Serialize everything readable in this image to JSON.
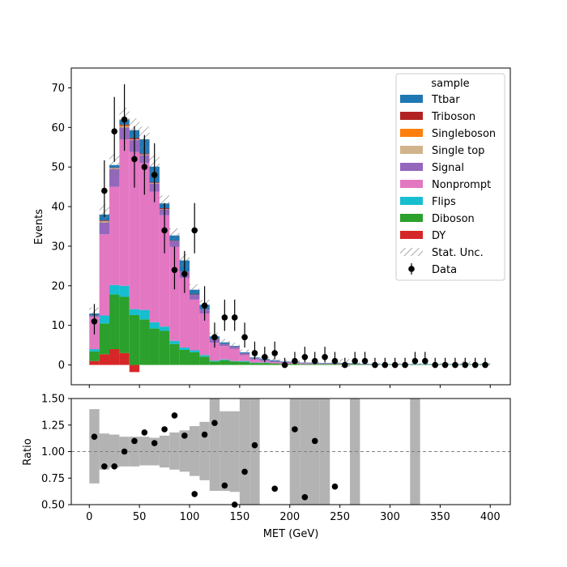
{
  "chart_data": {
    "type": "bar",
    "xlabel": "MET (GeV)",
    "ylabel": "Events",
    "ratio_ylabel": "Ratio",
    "xlim": [
      -18,
      420
    ],
    "ylim": [
      -5,
      75
    ],
    "ratio_ylim": [
      0.5,
      1.5
    ],
    "bin_width": 10,
    "bin_edges_start": 0,
    "x_ticks": [
      0,
      50,
      100,
      150,
      200,
      250,
      300,
      350,
      400
    ],
    "y_ticks": [
      0,
      10,
      20,
      30,
      40,
      50,
      60,
      70
    ],
    "ratio_ticks": [
      0.5,
      0.75,
      1.0,
      1.25,
      1.5
    ],
    "ratio_tick_labels": [
      "0.50",
      "0.75",
      "1.00",
      "1.25",
      "1.50"
    ],
    "legend_title": "sample",
    "legend_position": "top-right",
    "series": [
      {
        "name": "DY",
        "color": "#d62728",
        "values": [
          1.0,
          2.7,
          4.0,
          3.0,
          -1.8,
          0,
          0,
          0,
          0,
          0,
          0,
          0,
          0,
          0,
          0,
          0,
          0,
          0,
          0,
          0,
          0,
          0,
          0,
          0,
          0,
          0,
          0,
          0,
          0,
          0,
          0,
          0,
          0,
          0,
          0,
          0,
          0,
          0,
          0,
          0
        ]
      },
      {
        "name": "Diboson",
        "color": "#2ca02c",
        "values": [
          2.4,
          7.8,
          13.8,
          14.2,
          12.6,
          11.5,
          9.2,
          8.6,
          5.3,
          3.8,
          3.2,
          2.1,
          0.9,
          1.2,
          0.9,
          0.8,
          0.5,
          0.5,
          0.4,
          0.3,
          0.3,
          0.2,
          0.2,
          0.2,
          0.2,
          0.2,
          0.2,
          0.1,
          0.1,
          0.1,
          0.1,
          0.1,
          0.1,
          0.1,
          0.1,
          0.1,
          0.1,
          0.1,
          0.1,
          0.1
        ]
      },
      {
        "name": "Flips",
        "color": "#17becf",
        "values": [
          0.6,
          2.0,
          2.4,
          2.8,
          1.5,
          2.4,
          1.6,
          1.1,
          0.8,
          0.6,
          0.5,
          0.4,
          0.2,
          0.2,
          0.1,
          0.2,
          0.1,
          0.1,
          0,
          0,
          0,
          0,
          0,
          0,
          0,
          0,
          0,
          0,
          0,
          0,
          0,
          0,
          0,
          0,
          0,
          0,
          0,
          0,
          0,
          0
        ]
      },
      {
        "name": "Nonprompt",
        "color": "#e377c2",
        "values": [
          8.2,
          20.5,
          24.8,
          37.0,
          39.7,
          37.1,
          33.0,
          28.1,
          23.7,
          17.6,
          12.8,
          10.5,
          4.5,
          3.4,
          3.1,
          1.5,
          0.8,
          0.4,
          0.3,
          0.3,
          0.2,
          0.2,
          0.1,
          0.1,
          0.1,
          0.1,
          0,
          0,
          0,
          0,
          0,
          0,
          0,
          0,
          0,
          0,
          0,
          0,
          0,
          0
        ]
      },
      {
        "name": "Signal",
        "color": "#9467bd",
        "values": [
          0.3,
          3.0,
          4.5,
          3.0,
          3.0,
          2.0,
          2.0,
          1.5,
          1.5,
          1.5,
          1.2,
          1.0,
          1.0,
          0.5,
          0.5,
          0.5,
          0.3,
          0.3,
          0.3,
          0.2,
          0.2,
          0.1,
          0.1,
          0.1,
          0.1,
          0.1,
          0.1,
          0.1,
          0,
          0,
          0,
          0,
          0,
          0,
          0,
          0,
          0,
          0,
          0,
          0
        ]
      },
      {
        "name": "Single top",
        "color": "#d2b48c",
        "values": [
          0,
          0.3,
          0.2,
          0.2,
          0.2,
          0.2,
          0.1,
          0.1,
          0,
          0,
          0,
          0,
          0,
          0,
          0,
          0,
          0,
          0,
          0,
          0,
          0,
          0,
          0,
          0,
          0,
          0,
          0,
          0,
          0,
          0,
          0,
          0,
          0,
          0,
          0,
          0,
          0,
          0,
          0,
          0
        ]
      },
      {
        "name": "Singleboson",
        "color": "#ff7f0e",
        "values": [
          0,
          0,
          0,
          0.3,
          0,
          0,
          0,
          0,
          0,
          0,
          0,
          0,
          0,
          0,
          0,
          0,
          0,
          0,
          0,
          0,
          0,
          0,
          0,
          0,
          0,
          0,
          0,
          0,
          0,
          0,
          0,
          0,
          0,
          0,
          0,
          0,
          0,
          0,
          0,
          0
        ]
      },
      {
        "name": "Triboson",
        "color": "#b22222",
        "values": [
          0,
          0.2,
          0.1,
          0.2,
          0.3,
          0.2,
          0.2,
          0.2,
          0.1,
          0.1,
          0.1,
          0,
          0,
          0,
          0,
          0,
          0,
          0,
          0,
          0,
          0,
          0,
          0,
          0,
          0,
          0,
          0,
          0,
          0,
          0,
          0,
          0,
          0,
          0,
          0,
          0,
          0,
          0,
          0,
          0
        ]
      },
      {
        "name": "Ttbar",
        "color": "#1f77b4",
        "values": [
          0.5,
          1.5,
          0.7,
          1.3,
          2.0,
          3.6,
          4.0,
          1.2,
          1.3,
          2.8,
          1.2,
          1.2,
          0.6,
          0.4,
          0.2,
          0.2,
          0.2,
          0.2,
          0.2,
          0.1,
          0.1,
          0.1,
          0.1,
          0.1,
          0.1,
          0.1,
          0.1,
          0.1,
          0.1,
          0.1,
          0.1,
          0.1,
          0.1,
          0.1,
          0.1,
          0.1,
          0.1,
          0.1,
          0.1,
          0.1
        ]
      }
    ],
    "stat_unc": [
      1.5,
      2.5,
      2.8,
      3.0,
      3.0,
      3.2,
      2.8,
      2.0,
      1.8,
      1.6,
      1.4,
      1.3,
      1.0,
      0.9,
      0.8,
      0.7,
      0.5,
      0.5,
      0.4,
      0.4,
      0.4,
      0.3,
      0.3,
      0.3,
      0.3,
      1.0,
      0.3,
      0.3,
      0.3,
      0.3,
      0.3,
      0.3,
      0.3,
      0.3,
      0.3,
      0.3,
      0.3,
      0.8,
      0.3,
      0.3
    ],
    "data": {
      "name": "Data",
      "x": [
        5,
        15,
        25,
        35,
        45,
        55,
        65,
        75,
        85,
        95,
        105,
        115,
        125,
        135,
        145,
        155,
        165,
        175,
        185,
        195,
        205,
        215,
        225,
        235,
        245,
        255,
        265,
        275,
        285,
        295,
        305,
        315,
        325,
        335,
        345,
        355,
        365,
        375,
        385,
        395
      ],
      "y": [
        11,
        44,
        59,
        62,
        52,
        50,
        48,
        34,
        24,
        23,
        34,
        15,
        7,
        12,
        12,
        7,
        3,
        2,
        3,
        0,
        1,
        2,
        1,
        2,
        1,
        0,
        1,
        1,
        0,
        0,
        0,
        0,
        1,
        1,
        0,
        0,
        0,
        0,
        0,
        0
      ],
      "err_up": [
        4.4,
        7.7,
        8.7,
        8.9,
        8.3,
        8.1,
        8.0,
        6.9,
        5.9,
        5.8,
        6.9,
        4.9,
        3.7,
        4.5,
        4.5,
        3.7,
        2.9,
        2.6,
        2.9,
        1.8,
        2.3,
        2.6,
        2.3,
        2.6,
        2.3,
        1.8,
        2.3,
        2.3,
        1.8,
        1.8,
        1.8,
        1.8,
        2.3,
        2.3,
        1.8,
        1.8,
        1.8,
        1.8,
        1.8,
        1.8
      ],
      "err_down": [
        3.3,
        6.6,
        7.7,
        7.9,
        7.2,
        7.0,
        6.9,
        5.8,
        4.9,
        4.8,
        5.8,
        3.8,
        2.6,
        3.4,
        3.4,
        2.6,
        1.6,
        1.3,
        1.6,
        0,
        0.8,
        1.3,
        0.8,
        1.3,
        0.8,
        0,
        0.8,
        0.8,
        0,
        0,
        0,
        0,
        0.8,
        0.8,
        0,
        0,
        0,
        0,
        0,
        0
      ]
    },
    "ratio": {
      "x": [
        5,
        15,
        25,
        35,
        45,
        55,
        65,
        75,
        85,
        95,
        105,
        115,
        125,
        135,
        145,
        155,
        165,
        185,
        205,
        215,
        225,
        245
      ],
      "y": [
        1.14,
        0.86,
        0.86,
        1.0,
        1.1,
        1.18,
        1.08,
        1.21,
        1.34,
        1.15,
        0.6,
        1.16,
        1.27,
        0.68,
        0.5,
        0.81,
        1.06,
        0.65,
        1.21,
        0.57,
        1.1,
        0.67
      ],
      "band_low": [
        0.7,
        0.83,
        0.85,
        0.86,
        0.86,
        0.87,
        0.87,
        0.85,
        0.83,
        0.81,
        0.77,
        0.73,
        0.63,
        0.63,
        0.62,
        0.5,
        0.5,
        0.5,
        0.5,
        0.5,
        0.5,
        0.5,
        0.5,
        0.5,
        0.5,
        0.5,
        0.5,
        0.5,
        0.5,
        0.5,
        0.5,
        0.5,
        0.5,
        0.5,
        0.5,
        0.5,
        0.5,
        0.5,
        0.5,
        0.5
      ],
      "band_high": [
        1.4,
        1.17,
        1.16,
        1.14,
        1.14,
        1.14,
        1.13,
        1.15,
        1.18,
        1.2,
        1.24,
        1.28,
        1.5,
        1.38,
        1.38,
        1.5,
        1.5,
        null,
        null,
        null,
        1.5,
        1.5,
        1.5,
        1.5,
        null,
        null,
        1.5,
        null,
        null,
        null,
        null,
        null,
        1.5,
        null,
        null,
        null,
        null,
        null,
        null,
        null
      ]
    }
  }
}
